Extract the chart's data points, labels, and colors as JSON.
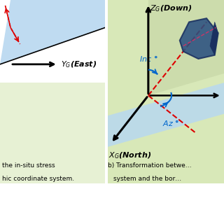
{
  "fig_width": 3.2,
  "fig_height": 3.2,
  "dpi": 100,
  "colors": {
    "white": "#ffffff",
    "light_green_bg": "#d8e8b8",
    "light_blue_plane": "#b8d8f0",
    "blue_plane_stroke": "#aaccee",
    "black": "#000000",
    "red_dashed": "#dd0000",
    "blue_arrow": "#0066cc",
    "green_arrow": "#00aa00",
    "borehole_face": "#2a5080",
    "borehole_dark": "#1a3060",
    "borehole_side": "#3a6090"
  },
  "left_caption": [
    "the in-situ stress",
    "hic coordinate system."
  ],
  "right_caption": [
    "b) Transformation betwe…",
    "system and the bor…"
  ]
}
